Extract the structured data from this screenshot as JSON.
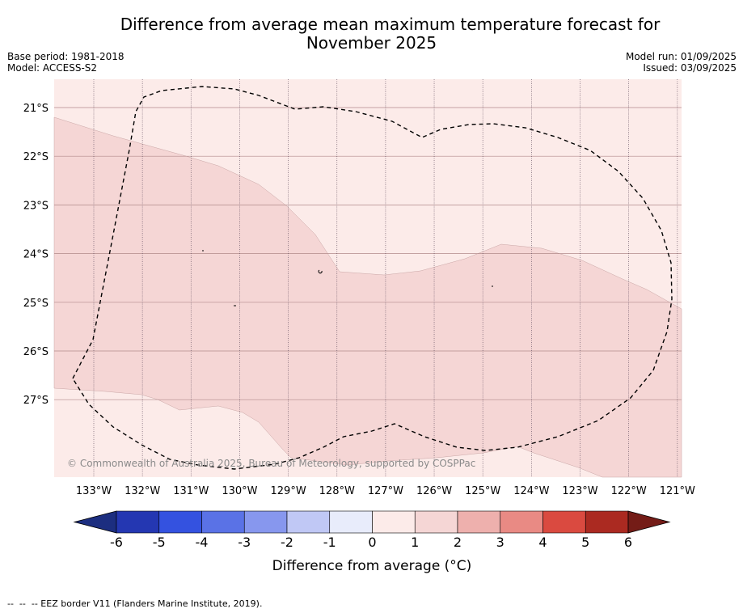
{
  "title_line1": "Difference from average mean maximum temperature forecast for",
  "title_line2": "November 2025",
  "base_period": "Base period: 1981-2018",
  "model": "Model: ACCESS-S2",
  "model_run": "Model run: 01/09/2025",
  "issued": "Issued: 03/09/2025",
  "lat_labels": [
    "21°S",
    "22°S",
    "23°S",
    "24°S",
    "25°S",
    "26°S",
    "27°S"
  ],
  "lon_labels": [
    "133°W",
    "132°W",
    "131°W",
    "130°W",
    "129°W",
    "128°W",
    "127°W",
    "126°W",
    "125°W",
    "124°W",
    "123°W",
    "122°W",
    "121°W"
  ],
  "copyright": "© Commonwealth of Australia 2025, Bureau of Meteorology, supported by COSPPac",
  "colorbar": {
    "ticks": [
      "-6",
      "-5",
      "-4",
      "-3",
      "-2",
      "-1",
      "0",
      "1",
      "2",
      "3",
      "4",
      "5",
      "6"
    ],
    "label": "Difference from average (°C)",
    "colors": [
      "#1c2e80",
      "#2437b2",
      "#3452e0",
      "#5a72e6",
      "#8797ee",
      "#c0c8f5",
      "#e8ecfb",
      "#fcebe9",
      "#f5d6d5",
      "#eeb0ad",
      "#e98a84",
      "#da4a40",
      "#ab2a21",
      "#741c17"
    ]
  },
  "fill_colors": {
    "zero_to_one": "#fcebe9",
    "one_to_two": "#f5d6d5"
  },
  "footer": "--  --  -- EEZ border V11 (Flanders Marine Institute, 2019)."
}
